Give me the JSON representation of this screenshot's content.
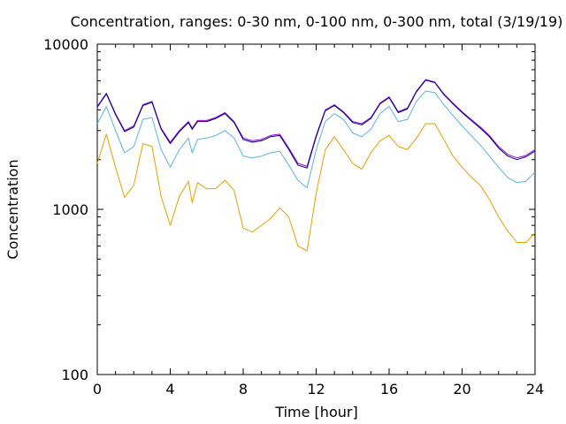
{
  "chart_data": {
    "type": "line",
    "title": "Concentration, ranges: 0-30 nm, 0-100 nm, 0-300 nm, total (3/19/19)",
    "xlabel": "Time [hour]",
    "ylabel": "Concentration",
    "xlim": [
      0,
      24
    ],
    "ylim": [
      100,
      10000
    ],
    "yscale": "log",
    "xticks": [
      0,
      4,
      8,
      12,
      16,
      20,
      24
    ],
    "xtick_labels": [
      "0",
      "4",
      "8",
      "12",
      "16",
      "20",
      "24"
    ],
    "yticks": [
      100,
      1000,
      10000
    ],
    "ytick_labels": [
      "100",
      "1000",
      "10000"
    ],
    "grid": false,
    "legend": "none",
    "series": [
      {
        "color": "#e69f00",
        "x": [
          0,
          0.5,
          1,
          1.5,
          2,
          2.5,
          3,
          3.5,
          4,
          4.5,
          5,
          5.2,
          5.5,
          6,
          6.5,
          7,
          7.5,
          8,
          8.5,
          9,
          9.5,
          10,
          10.5,
          11,
          11.5,
          12,
          12.5,
          13,
          13.5,
          14,
          14.5,
          15,
          15.5,
          16,
          16.5,
          17,
          17.5,
          18,
          18.5,
          19,
          19.5,
          20,
          20.5,
          21,
          21.5,
          22,
          22.5,
          23,
          23.5,
          24
        ],
        "y": [
          1900,
          2850,
          1800,
          1180,
          1400,
          2500,
          2400,
          1200,
          800,
          1200,
          1480,
          1100,
          1450,
          1330,
          1340,
          1500,
          1300,
          770,
          730,
          800,
          880,
          1020,
          900,
          600,
          560,
          1250,
          2300,
          2750,
          2300,
          1900,
          1750,
          2200,
          2600,
          2800,
          2400,
          2300,
          2700,
          3300,
          3300,
          2650,
          2100,
          1800,
          1570,
          1400,
          1150,
          900,
          740,
          630,
          630,
          720
        ]
      },
      {
        "color": "#56b4e9",
        "x": [
          0,
          0.5,
          1,
          1.5,
          2,
          2.5,
          3,
          3.5,
          4,
          4.5,
          5,
          5.2,
          5.5,
          6,
          6.5,
          7,
          7.5,
          8,
          8.5,
          9,
          9.5,
          10,
          10.5,
          11,
          11.5,
          12,
          12.5,
          13,
          13.5,
          14,
          14.5,
          15,
          15.5,
          16,
          16.5,
          17,
          17.5,
          18,
          18.5,
          19,
          19.5,
          20,
          20.5,
          21,
          21.5,
          22,
          22.5,
          23,
          23.5,
          24
        ],
        "y": [
          3300,
          4200,
          3000,
          2200,
          2400,
          3500,
          3600,
          2300,
          1800,
          2300,
          2700,
          2200,
          2650,
          2700,
          2800,
          3000,
          2700,
          2100,
          2050,
          2100,
          2200,
          2250,
          1850,
          1500,
          1350,
          2300,
          3400,
          3800,
          3500,
          2900,
          2750,
          3050,
          3800,
          4200,
          3400,
          3500,
          4500,
          5200,
          5100,
          4300,
          3700,
          3200,
          2800,
          2450,
          2100,
          1800,
          1560,
          1450,
          1480,
          1680
        ]
      },
      {
        "color": "#9400d3",
        "x": [
          0,
          0.5,
          1,
          1.5,
          2,
          2.5,
          3,
          3.5,
          4,
          4.5,
          5,
          5.2,
          5.5,
          6,
          6.5,
          7,
          7.5,
          8,
          8.5,
          9,
          9.5,
          10,
          10.5,
          11,
          11.5,
          12,
          12.5,
          13,
          13.5,
          14,
          14.5,
          15,
          15.5,
          16,
          16.5,
          17,
          17.5,
          18,
          18.5,
          19,
          19.5,
          20,
          20.5,
          21,
          21.5,
          22,
          22.5,
          23,
          23.5,
          24
        ],
        "y": [
          4200,
          5050,
          3800,
          3000,
          3200,
          4300,
          4500,
          3100,
          2550,
          3000,
          3400,
          3100,
          3450,
          3450,
          3600,
          3850,
          3400,
          2700,
          2600,
          2650,
          2800,
          2850,
          2350,
          1900,
          1820,
          2800,
          4000,
          4300,
          3900,
          3400,
          3300,
          3600,
          4400,
          4800,
          3900,
          4100,
          5200,
          6100,
          5900,
          5000,
          4400,
          3900,
          3500,
          3150,
          2800,
          2400,
          2150,
          2050,
          2120,
          2300
        ]
      },
      {
        "color": "#000080",
        "x": [
          0,
          0.5,
          1,
          1.5,
          2,
          2.5,
          3,
          3.5,
          4,
          4.5,
          5,
          5.2,
          5.5,
          6,
          6.5,
          7,
          7.5,
          8,
          8.5,
          9,
          9.5,
          10,
          10.5,
          11,
          11.5,
          12,
          12.5,
          13,
          13.5,
          14,
          14.5,
          15,
          15.5,
          16,
          16.5,
          17,
          17.5,
          18,
          18.5,
          19,
          19.5,
          20,
          20.5,
          21,
          21.5,
          22,
          22.5,
          23,
          23.5,
          24
        ],
        "y": [
          4150,
          5000,
          3750,
          2950,
          3150,
          4250,
          4450,
          3050,
          2500,
          2950,
          3350,
          3050,
          3400,
          3400,
          3550,
          3800,
          3350,
          2650,
          2550,
          2600,
          2750,
          2800,
          2300,
          1850,
          1780,
          2750,
          3950,
          4250,
          3850,
          3350,
          3250,
          3550,
          4350,
          4750,
          3850,
          4050,
          5150,
          6050,
          5850,
          4950,
          4350,
          3850,
          3450,
          3100,
          2750,
          2350,
          2100,
          2000,
          2080,
          2250
        ]
      }
    ]
  }
}
